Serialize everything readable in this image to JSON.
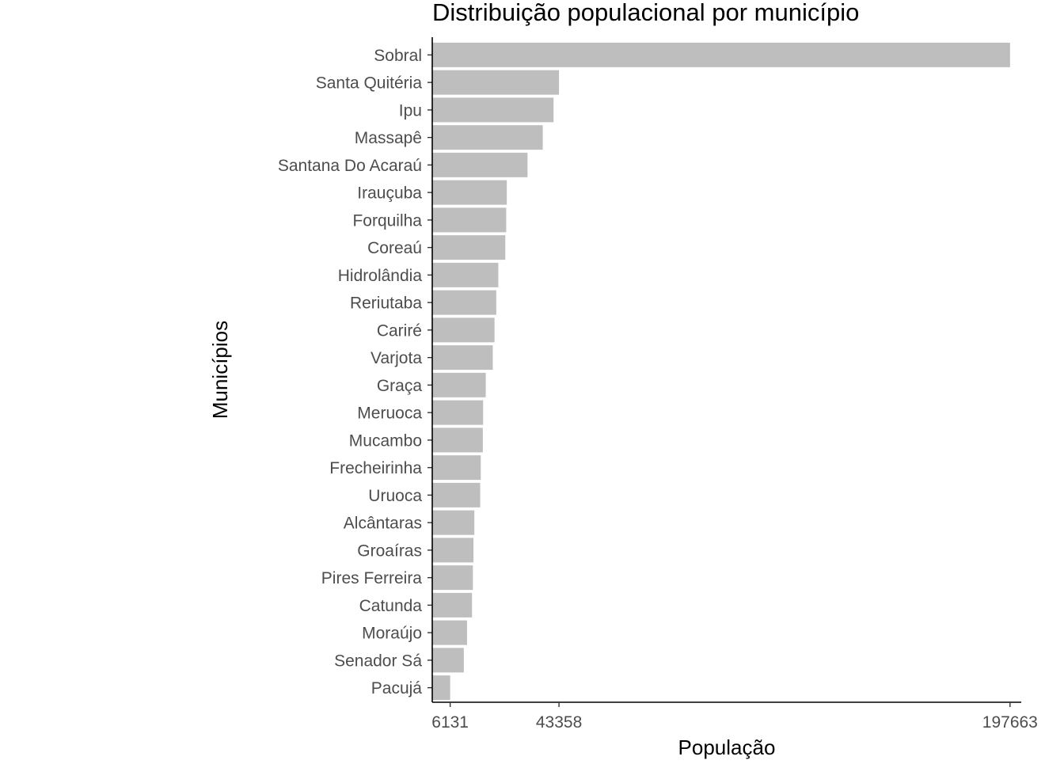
{
  "chart_data": {
    "type": "bar",
    "orientation": "horizontal",
    "title": "Distribuição populacional por município",
    "xlabel": "População",
    "ylabel": "Municípios",
    "bar_color": "#bebebe",
    "categories": [
      "Sobral",
      "Santa Quitéria",
      "Ipu",
      "Massapê",
      "Santana Do Acaraú",
      "Irauçuba",
      "Forquilha",
      "Coreaú",
      "Hidrolândia",
      "Reriutaba",
      "Cariré",
      "Varjota",
      "Graça",
      "Meruoca",
      "Mucambo",
      "Frecheirinha",
      "Uruoca",
      "Alcântaras",
      "Groaíras",
      "Pires Ferreira",
      "Catunda",
      "Moraújo",
      "Senador Sá",
      "Pacujá"
    ],
    "values": [
      197663,
      43358,
      41500,
      37800,
      32600,
      25500,
      25300,
      25000,
      22600,
      21900,
      21300,
      20700,
      18300,
      17400,
      17300,
      16600,
      16400,
      14400,
      14100,
      13900,
      13600,
      11900,
      10800,
      6131
    ],
    "xticks": [
      "6131",
      "43358",
      "197663"
    ],
    "xtick_values": [
      6131,
      43358,
      197663
    ],
    "xlim": [
      0,
      201500
    ],
    "grid": false,
    "legend": "none"
  }
}
